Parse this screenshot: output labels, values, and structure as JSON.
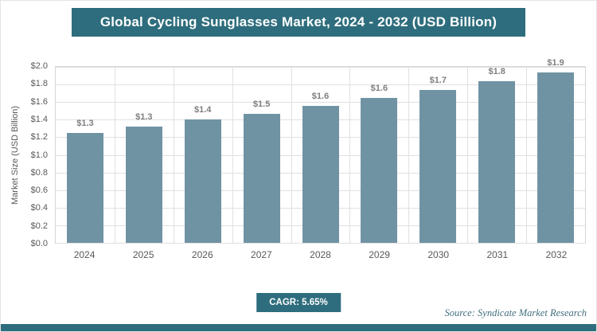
{
  "title": "Global Cycling Sunglasses Market, 2024 - 2032 (USD Billion)",
  "colors": {
    "accent": "#2e6d7d",
    "bar": "#7093a4",
    "grid": "#e0e0e0",
    "tick_label": "#595959",
    "value_label": "#7f7f7f"
  },
  "chart_data": {
    "type": "bar",
    "title": "Global Cycling Sunglasses Market, 2024 - 2032 (USD Billion)",
    "categories": [
      "2024",
      "2025",
      "2026",
      "2027",
      "2028",
      "2029",
      "2030",
      "2031",
      "2032"
    ],
    "values": [
      1.25,
      1.32,
      1.4,
      1.47,
      1.56,
      1.65,
      1.74,
      1.84,
      1.94
    ],
    "bar_labels": [
      "$1.3",
      "$1.3",
      "$1.4",
      "$1.5",
      "$1.6",
      "$1.6",
      "$1.7",
      "$1.8",
      "$1.9"
    ],
    "xlabel": "",
    "ylabel": "Market Size (USD Billion)",
    "ylim": [
      0,
      2.0
    ],
    "y_ticks": [
      "$0.0",
      "$0.2",
      "$0.4",
      "$0.6",
      "$0.8",
      "$1.0",
      "$1.2",
      "$1.4",
      "$1.6",
      "$1.8",
      "$2.0"
    ],
    "grid": "horizontal and vertical light gray gridlines, plot area bordered",
    "legend": "none"
  },
  "footer": {
    "cagr_label": "CAGR: 5.65%",
    "source": "Source: Syndicate Market Research"
  }
}
